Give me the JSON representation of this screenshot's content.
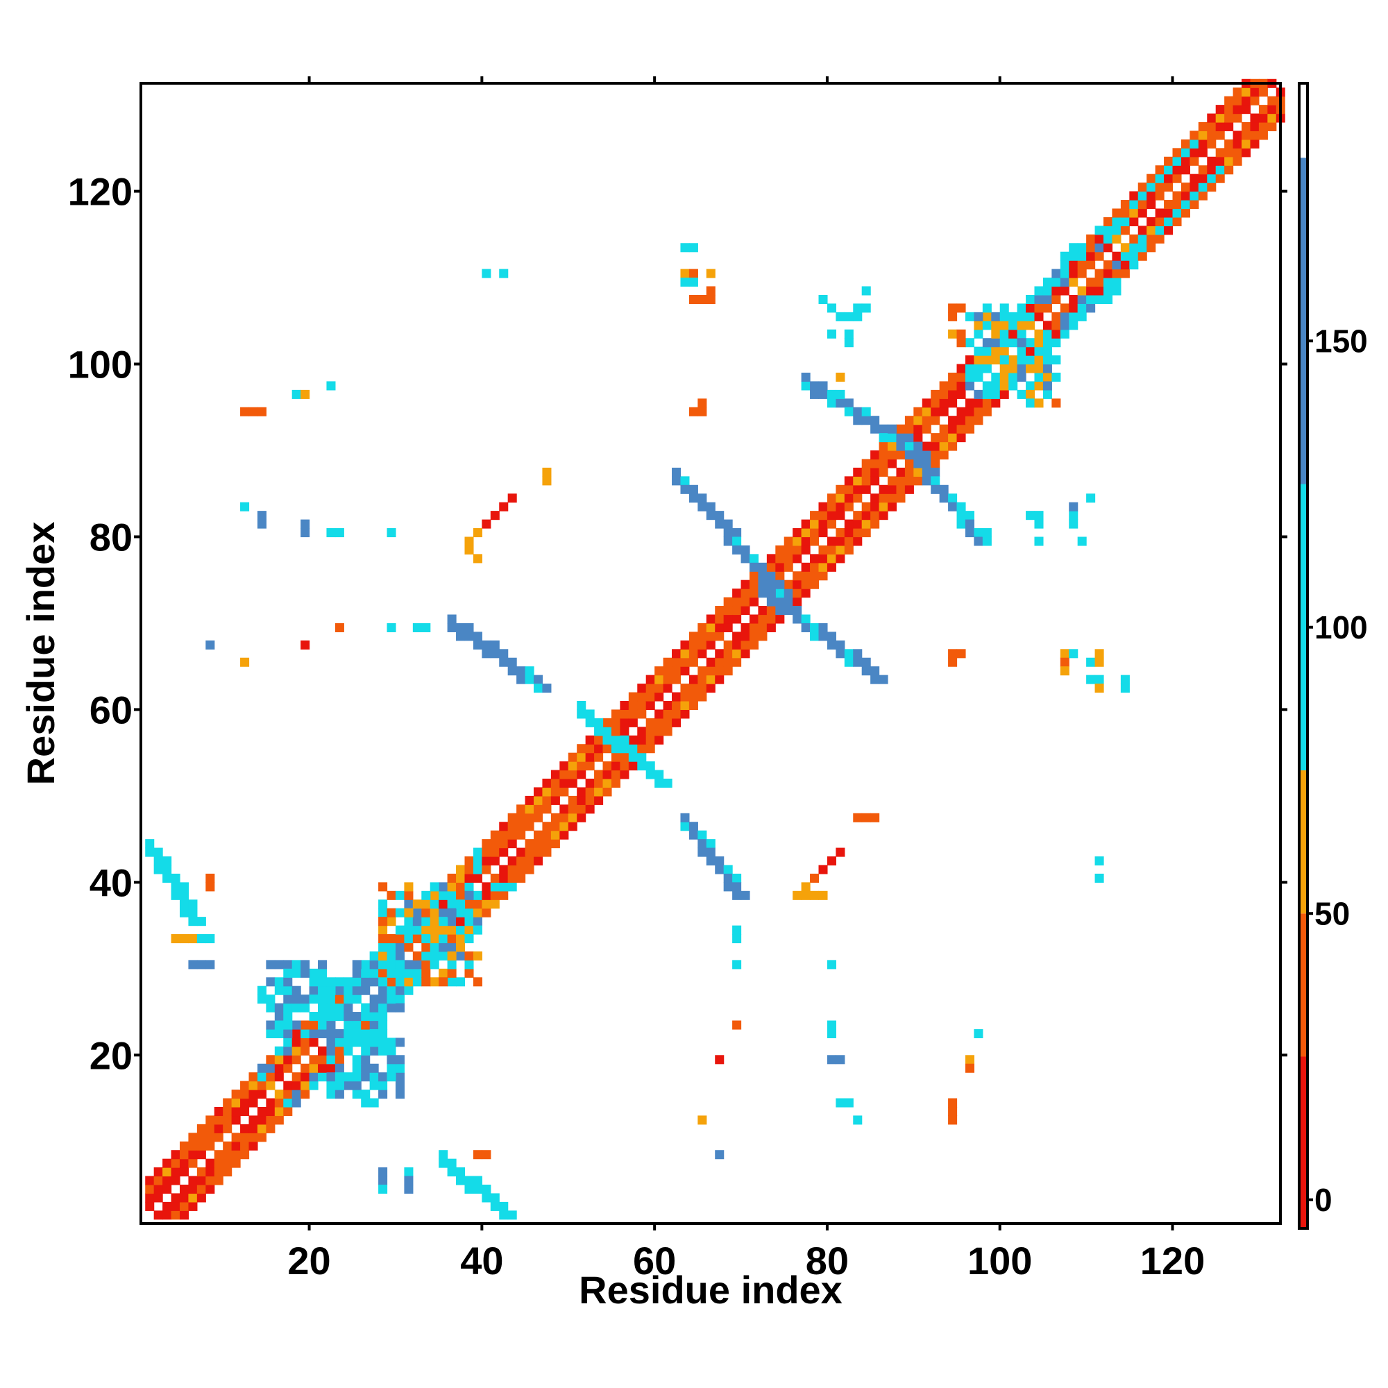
{
  "chart_data": {
    "type": "heatmap",
    "title": "",
    "xlabel": "Residue index",
    "ylabel": "Residue index",
    "xlim": [
      1,
      132
    ],
    "ylim": [
      1,
      132
    ],
    "x_ticks": [
      20,
      40,
      60,
      80,
      100,
      120
    ],
    "y_ticks": [
      20,
      40,
      60,
      80,
      100,
      120
    ],
    "grid": false,
    "colorbar": {
      "position": "right",
      "range": [
        -5,
        195
      ],
      "ticks": [
        0,
        50,
        100,
        150
      ],
      "bands": [
        {
          "from": -5,
          "to": 25,
          "color": "#e8150c"
        },
        {
          "from": 25,
          "to": 50,
          "color": "#f25a0a"
        },
        {
          "from": 50,
          "to": 75,
          "color": "#f5a20a"
        },
        {
          "from": 75,
          "to": 125,
          "color": "#14dbe8"
        },
        {
          "from": 125,
          "to": 182,
          "color": "#4a86c4"
        },
        {
          "from": 182,
          "to": 195,
          "color": "#ffffff"
        }
      ]
    },
    "cell_palette": {
      "R": "#e8150c",
      "O": "#f25a0a",
      "A": "#f5a20a",
      "C": "#14dbe8",
      "B": "#4a86c4"
    },
    "diagonal_segments": [
      {
        "from": 1,
        "to": 14,
        "kind": "helix"
      },
      {
        "from": 14,
        "to": 28,
        "kind": "mixed"
      },
      {
        "from": 28,
        "to": 40,
        "kind": "mixed"
      },
      {
        "from": 40,
        "to": 55,
        "kind": "helix"
      },
      {
        "from": 55,
        "to": 71,
        "kind": "helix"
      },
      {
        "from": 71,
        "to": 88,
        "kind": "helix"
      },
      {
        "from": 88,
        "to": 97,
        "kind": "helix"
      },
      {
        "from": 97,
        "to": 116,
        "kind": "mixed"
      },
      {
        "from": 116,
        "to": 132,
        "kind": "helix"
      }
    ],
    "antidiagonal_strands": [
      {
        "c1": 51,
        "c2": 60,
        "r1": 59,
        "r2": 51,
        "color": "C",
        "width": 2
      },
      {
        "c1": 36,
        "c2": 46,
        "r1": 69,
        "r2": 62,
        "color": "B",
        "width": 2
      },
      {
        "c1": 62,
        "c2": 74,
        "r1": 86,
        "r2": 73,
        "color": "B",
        "width": 2
      },
      {
        "c1": 72,
        "c2": 85,
        "r1": 73,
        "r2": 63,
        "color": "B",
        "width": 2
      },
      {
        "c1": 77,
        "c2": 90,
        "r1": 97,
        "r2": 89,
        "color": "B",
        "width": 2
      },
      {
        "c1": 89,
        "c2": 97,
        "r1": 89,
        "r2": 79,
        "color": "B",
        "width": 2
      },
      {
        "c1": 63,
        "c2": 69,
        "r1": 46,
        "r2": 38,
        "color": "B",
        "width": 2
      },
      {
        "c1": 1,
        "c2": 6,
        "r1": 43,
        "r2": 35,
        "color": "C",
        "width": 2
      },
      {
        "c1": 35,
        "c2": 42,
        "r1": 7,
        "r2": 1,
        "color": "C",
        "width": 2
      }
    ],
    "scattered_cells": [
      [
        12,
        94,
        "O"
      ],
      [
        13,
        94,
        "O"
      ],
      [
        14,
        94,
        "O"
      ],
      [
        18,
        96,
        "C"
      ],
      [
        19,
        96,
        "A"
      ],
      [
        22,
        97,
        "C"
      ],
      [
        12,
        83,
        "C"
      ],
      [
        14,
        82,
        "B"
      ],
      [
        14,
        81,
        "B"
      ],
      [
        19,
        81,
        "B"
      ],
      [
        19,
        80,
        "B"
      ],
      [
        22,
        80,
        "C"
      ],
      [
        23,
        80,
        "C"
      ],
      [
        29,
        80,
        "C"
      ],
      [
        8,
        67,
        "B"
      ],
      [
        12,
        65,
        "A"
      ],
      [
        19,
        67,
        "R"
      ],
      [
        23,
        69,
        "O"
      ],
      [
        29,
        69,
        "C"
      ],
      [
        32,
        69,
        "C"
      ],
      [
        33,
        69,
        "C"
      ],
      [
        40,
        110,
        "C"
      ],
      [
        42,
        110,
        "C"
      ],
      [
        63,
        113,
        "C"
      ],
      [
        64,
        113,
        "C"
      ],
      [
        63,
        110,
        "A"
      ],
      [
        64,
        110,
        "O"
      ],
      [
        66,
        110,
        "A"
      ],
      [
        63,
        109,
        "C"
      ],
      [
        64,
        109,
        "C"
      ],
      [
        66,
        108,
        "O"
      ],
      [
        64,
        107,
        "O"
      ],
      [
        65,
        107,
        "O"
      ],
      [
        66,
        107,
        "O"
      ],
      [
        65,
        95,
        "O"
      ],
      [
        65,
        94,
        "O"
      ],
      [
        64,
        94,
        "O"
      ],
      [
        47,
        87,
        "A"
      ],
      [
        47,
        86,
        "A"
      ],
      [
        43,
        84,
        "R"
      ],
      [
        42,
        83,
        "R"
      ],
      [
        41,
        82,
        "R"
      ],
      [
        40,
        81,
        "O"
      ],
      [
        39,
        80,
        "A"
      ],
      [
        38,
        79,
        "A"
      ],
      [
        38,
        78,
        "A"
      ],
      [
        39,
        77,
        "A"
      ],
      [
        40,
        81,
        "R"
      ],
      [
        79,
        107,
        "C"
      ],
      [
        80,
        106,
        "C"
      ],
      [
        81,
        105,
        "C"
      ],
      [
        82,
        105,
        "C"
      ],
      [
        83,
        105,
        "C"
      ],
      [
        83,
        106,
        "C"
      ],
      [
        84,
        106,
        "C"
      ],
      [
        80,
        103,
        "C"
      ],
      [
        82,
        103,
        "C"
      ],
      [
        82,
        102,
        "C"
      ],
      [
        81,
        98,
        "A"
      ],
      [
        84,
        108,
        "C"
      ],
      [
        94,
        106,
        "O"
      ],
      [
        95,
        106,
        "O"
      ],
      [
        94,
        105,
        "O"
      ],
      [
        94,
        103,
        "A"
      ],
      [
        95,
        103,
        "O"
      ],
      [
        95,
        102,
        "O"
      ],
      [
        103,
        96,
        "A"
      ],
      [
        103,
        95,
        "C"
      ],
      [
        104,
        95,
        "A"
      ],
      [
        106,
        95,
        "O"
      ],
      [
        98,
        80,
        "C"
      ],
      [
        103,
        82,
        "C"
      ],
      [
        104,
        82,
        "C"
      ],
      [
        104,
        81,
        "C"
      ],
      [
        104,
        79,
        "C"
      ],
      [
        108,
        82,
        "C"
      ],
      [
        108,
        83,
        "B"
      ],
      [
        108,
        81,
        "C"
      ],
      [
        109,
        79,
        "C"
      ],
      [
        110,
        84,
        "C"
      ],
      [
        94,
        66,
        "O"
      ],
      [
        95,
        66,
        "O"
      ],
      [
        94,
        65,
        "O"
      ],
      [
        107,
        66,
        "A"
      ],
      [
        107,
        65,
        "O"
      ],
      [
        107,
        64,
        "A"
      ],
      [
        108,
        66,
        "C"
      ],
      [
        110,
        65,
        "C"
      ],
      [
        111,
        65,
        "A"
      ],
      [
        111,
        66,
        "A"
      ],
      [
        110,
        63,
        "C"
      ],
      [
        111,
        63,
        "C"
      ],
      [
        111,
        62,
        "A"
      ],
      [
        114,
        63,
        "C"
      ],
      [
        114,
        62,
        "C"
      ],
      [
        83,
        47,
        "O"
      ],
      [
        84,
        47,
        "O"
      ],
      [
        85,
        47,
        "O"
      ],
      [
        81,
        43,
        "R"
      ],
      [
        80,
        42,
        "R"
      ],
      [
        79,
        41,
        "R"
      ],
      [
        78,
        40,
        "O"
      ],
      [
        77,
        39,
        "A"
      ],
      [
        76,
        38,
        "A"
      ],
      [
        77,
        38,
        "A"
      ],
      [
        78,
        38,
        "A"
      ],
      [
        79,
        38,
        "A"
      ],
      [
        111,
        42,
        "C"
      ],
      [
        111,
        40,
        "C"
      ],
      [
        69,
        34,
        "C"
      ],
      [
        69,
        33,
        "C"
      ],
      [
        69,
        30,
        "C"
      ],
      [
        80,
        30,
        "C"
      ],
      [
        69,
        23,
        "O"
      ],
      [
        67,
        19,
        "R"
      ],
      [
        80,
        23,
        "C"
      ],
      [
        80,
        22,
        "C"
      ],
      [
        80,
        19,
        "B"
      ],
      [
        81,
        19,
        "B"
      ],
      [
        97,
        22,
        "C"
      ],
      [
        96,
        19,
        "A"
      ],
      [
        96,
        18,
        "O"
      ],
      [
        94,
        14,
        "O"
      ],
      [
        94,
        13,
        "O"
      ],
      [
        94,
        12,
        "O"
      ],
      [
        81,
        14,
        "C"
      ],
      [
        82,
        14,
        "C"
      ],
      [
        83,
        12,
        "C"
      ],
      [
        65,
        12,
        "A"
      ],
      [
        67,
        8,
        "B"
      ],
      [
        28,
        6,
        "B"
      ],
      [
        28,
        5,
        "B"
      ],
      [
        28,
        4,
        "C"
      ],
      [
        31,
        6,
        "C"
      ],
      [
        31,
        5,
        "B"
      ],
      [
        31,
        4,
        "B"
      ],
      [
        39,
        8,
        "O"
      ],
      [
        40,
        8,
        "O"
      ],
      [
        8,
        40,
        "O"
      ],
      [
        8,
        39,
        "O"
      ],
      [
        4,
        33,
        "A"
      ],
      [
        5,
        33,
        "A"
      ],
      [
        6,
        33,
        "A"
      ],
      [
        7,
        33,
        "C"
      ],
      [
        8,
        33,
        "C"
      ],
      [
        6,
        30,
        "B"
      ],
      [
        7,
        30,
        "B"
      ],
      [
        8,
        30,
        "B"
      ]
    ],
    "block_patches": [
      {
        "c1": 15,
        "c2": 28,
        "r1": 22,
        "r2": 30,
        "density": 0.55,
        "colors": [
          "C",
          "B",
          "C",
          "B",
          "C"
        ]
      },
      {
        "c1": 26,
        "c2": 30,
        "r1": 14,
        "r2": 20,
        "density": 0.55,
        "colors": [
          "B",
          "C",
          "B"
        ]
      },
      {
        "c1": 28,
        "c2": 38,
        "r1": 28,
        "r2": 39,
        "density": 0.6,
        "colors": [
          "C",
          "C",
          "B",
          "A",
          "O"
        ]
      },
      {
        "c1": 97,
        "c2": 106,
        "r1": 96,
        "r2": 105,
        "density": 0.55,
        "colors": [
          "C",
          "C",
          "B",
          "A"
        ]
      }
    ],
    "strand_pairs": [
      {
        "a1": 15,
        "a2": 28,
        "b1": 22,
        "b2": 30,
        "color": "C"
      },
      {
        "a1": 97,
        "a2": 110,
        "b1": 100,
        "b2": 115,
        "color": "C"
      },
      {
        "a1": 113,
        "a2": 122,
        "b1": 116,
        "b2": 125,
        "color": "C"
      }
    ]
  }
}
